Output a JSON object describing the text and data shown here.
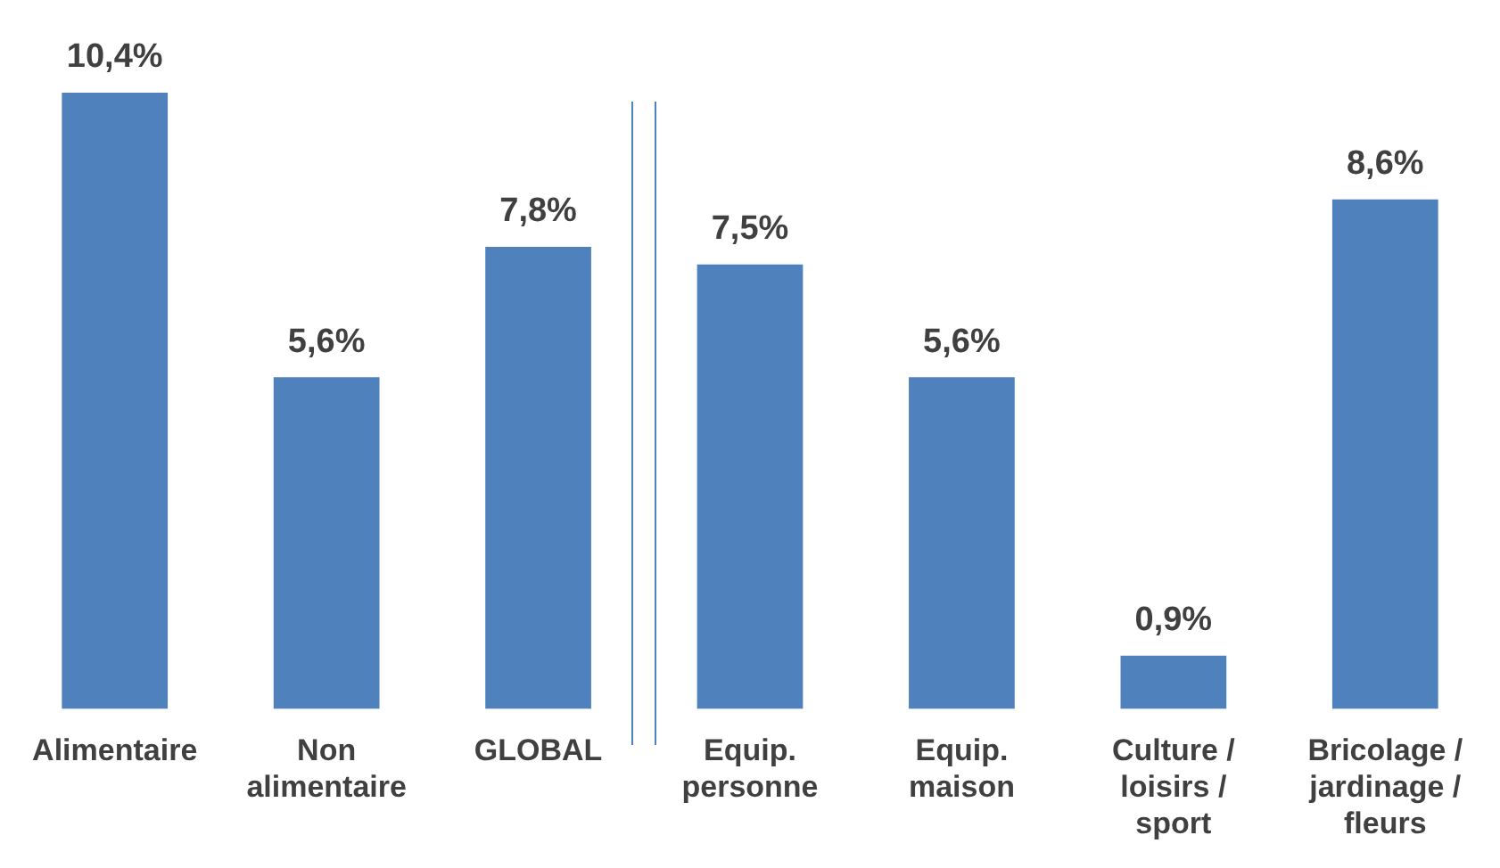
{
  "chart_data": {
    "type": "bar",
    "categories": [
      "Alimentaire",
      "Non alimentaire",
      "GLOBAL",
      "Equip. personne",
      "Equip. maison",
      "Culture / loisirs / sport",
      "Bricolage / jardinage / fleurs"
    ],
    "values": [
      10.4,
      5.6,
      7.8,
      7.5,
      5.6,
      0.9,
      8.6
    ],
    "value_labels": [
      "10,4%",
      "5,6%",
      "7,8%",
      "7,5%",
      "5,6%",
      "0,9%",
      "8,6%"
    ],
    "color": "#4f81bd",
    "grid": false,
    "legend": false
  }
}
